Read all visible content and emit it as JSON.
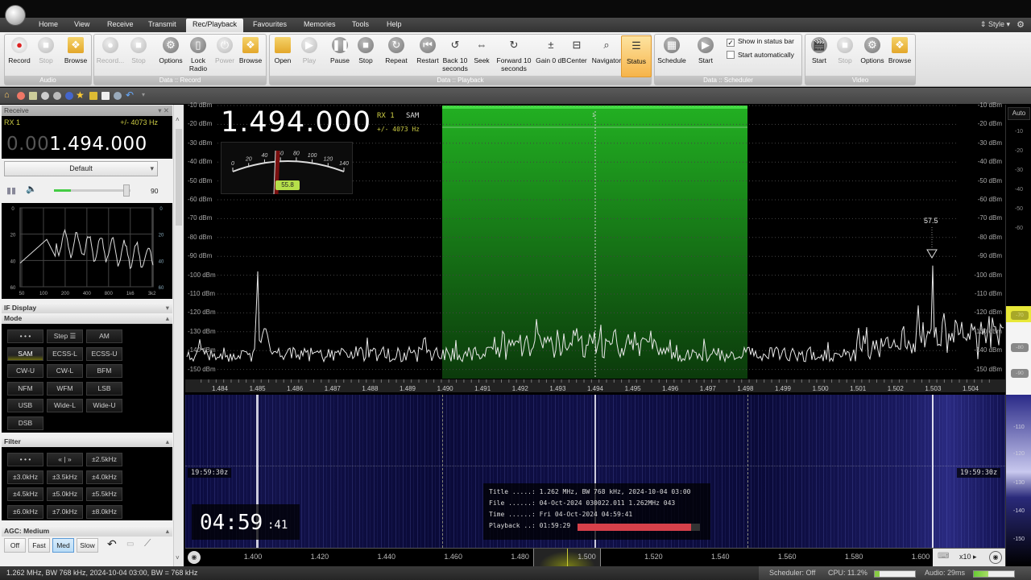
{
  "menu": {
    "tabs": [
      "Home",
      "View",
      "Receive",
      "Transmit",
      "Rec/Playback",
      "Favourites",
      "Memories",
      "Tools",
      "Help"
    ],
    "active": "Rec/Playback",
    "style_label": "Style"
  },
  "ribbon": {
    "groups": [
      "Audio",
      "Data :: Record",
      "Data :: Playback",
      "Data :: Scheduler",
      "Video"
    ],
    "buttons": [
      {
        "label": "Record",
        "icon": "record-icon",
        "disabled": false
      },
      {
        "label": "Stop",
        "icon": "stop-icon",
        "disabled": true
      },
      {
        "label": "Browse",
        "icon": "browse-folder-icon",
        "disabled": false
      },
      {
        "label": "Record...",
        "icon": "record-icon",
        "disabled": true
      },
      {
        "label": "Stop",
        "icon": "stop-icon",
        "disabled": true
      },
      {
        "label": "Options",
        "icon": "options-gear-icon",
        "disabled": false
      },
      {
        "label": "Lock Radio",
        "icon": "lock-icon",
        "disabled": false
      },
      {
        "label": "Power",
        "icon": "power-icon",
        "disabled": true
      },
      {
        "label": "Browse",
        "icon": "browse-folder-icon",
        "disabled": false
      },
      {
        "label": "Open",
        "icon": "open-folder-icon",
        "disabled": false
      },
      {
        "label": "Play",
        "icon": "play-icon",
        "disabled": true
      },
      {
        "label": "Pause",
        "icon": "pause-icon",
        "disabled": false
      },
      {
        "label": "Stop",
        "icon": "stop-icon",
        "disabled": false
      },
      {
        "label": "Repeat",
        "icon": "repeat-icon",
        "disabled": false
      },
      {
        "label": "Restart",
        "icon": "restart-icon",
        "disabled": false
      },
      {
        "label": "Back 10 seconds",
        "icon": "back-10-icon",
        "disabled": false
      },
      {
        "label": "Seek",
        "icon": "seek-icon",
        "disabled": false
      },
      {
        "label": "Forward 10 seconds",
        "icon": "forward-10-icon",
        "disabled": false
      },
      {
        "label": "Gain 0 dB",
        "icon": "gain-icon",
        "disabled": false
      },
      {
        "label": "Center",
        "icon": "center-icon",
        "disabled": false
      },
      {
        "label": "Navigator",
        "icon": "navigator-search-icon",
        "disabled": false
      },
      {
        "label": "Status",
        "icon": "status-list-icon",
        "disabled": false,
        "active": true
      },
      {
        "label": "Schedule",
        "icon": "schedule-calendar-icon",
        "disabled": false
      },
      {
        "label": "Start",
        "icon": "start-play-icon",
        "disabled": false
      },
      {
        "label": "Start",
        "icon": "video-clapper-icon",
        "disabled": false
      },
      {
        "label": "Stop",
        "icon": "stop-icon",
        "disabled": true
      },
      {
        "label": "Options",
        "icon": "options-gear-icon",
        "disabled": false
      },
      {
        "label": "Browse",
        "icon": "browse-folder-icon",
        "disabled": false
      }
    ],
    "show_in_status_bar": {
      "label": "Show in status bar",
      "checked": true
    },
    "start_automatically": {
      "label": "Start automatically",
      "checked": false
    }
  },
  "receive": {
    "panel_title": "Receive",
    "rx": "RX 1",
    "bandwidth": "+/- 4073 Hz",
    "freq_dim": "0.00",
    "freq_main": "1.494.000",
    "preset": "Default",
    "volume": 90,
    "audio_y_labels": [
      "0",
      "20",
      "40",
      "60"
    ],
    "audio_x_labels": [
      "50",
      "100",
      "200",
      "400",
      "800",
      "1k6",
      "3k2"
    ]
  },
  "if_display": {
    "title": "IF Display"
  },
  "mode": {
    "title": "Mode",
    "buttons": [
      "• • •",
      "Step ☰",
      "AM",
      "SAM",
      "ECSS-L",
      "ECSS-U",
      "CW-U",
      "CW-L",
      "BFM",
      "NFM",
      "WFM",
      "LSB",
      "USB",
      "Wide-L",
      "Wide-U",
      "DSB"
    ],
    "selected": "SAM"
  },
  "filter": {
    "title": "Filter",
    "buttons": [
      "• • •",
      "« | »",
      "±2.5kHz",
      "±3.0kHz",
      "±3.5kHz",
      "±4.0kHz",
      "±4.5kHz",
      "±5.0kHz",
      "±5.5kHz",
      "±6.0kHz",
      "±7.0kHz",
      "±8.0kHz"
    ]
  },
  "agc": {
    "title": "AGC: Medium",
    "buttons": [
      "Off",
      "Fast",
      "Med",
      "Slow"
    ],
    "selected": "Med"
  },
  "spectrum": {
    "frequency": "1.494.000",
    "rx": "RX 1",
    "mode": "SAM",
    "bandwidth": "+/- 4073 Hz",
    "smeter_value": "55.8",
    "smeter_labels": [
      "0",
      "20",
      "40",
      "60",
      "80",
      "100",
      "120",
      "140"
    ],
    "dbm_labels": [
      "-10 dBm",
      "-20 dBm",
      "-30 dBm",
      "-40 dBm",
      "-50 dBm",
      "-60 dBm",
      "-70 dBm",
      "-80 dBm",
      "-90 dBm",
      "-100 dBm",
      "-110 dBm",
      "-120 dBm",
      "-130 dBm",
      "-140 dBm",
      "-150 dBm"
    ],
    "freq_labels": [
      "1.484",
      "1.485",
      "1.486",
      "1.487",
      "1.488",
      "1.489",
      "1.490",
      "1.491",
      "1.492",
      "1.493",
      "1.494",
      "1.495",
      "1.496",
      "1.497",
      "1.498",
      "1.499",
      "1.500",
      "1.501",
      "1.502",
      "1.503",
      "1.504"
    ],
    "vfo_marker": "1",
    "peak_label": "57.5",
    "passband_color": "#1fa01f"
  },
  "waterfall": {
    "time_left": "19:59:30z",
    "time_right": "19:59:30z",
    "clock_hm": "04:59",
    "clock_s": ":41",
    "info": [
      {
        "k": "Title .....:",
        "v": "1.262 MHz, BW 768 kHz, 2024-10-04 03:00"
      },
      {
        "k": "File ......:",
        "v": "04-Oct-2024 030022.011 1.262MHz 043"
      },
      {
        "k": "Time ......:",
        "v": "Fri 04-Oct-2024 04:59:41"
      },
      {
        "k": "Playback ..:",
        "v": "01:59:29"
      }
    ],
    "playback_progress": 0.93,
    "progress_color": "#d6404a"
  },
  "overview": {
    "labels": [
      "1.400",
      "1.420",
      "1.440",
      "1.460",
      "1.480",
      "1.500",
      "1.520",
      "1.540",
      "1.560",
      "1.580",
      "1.600"
    ],
    "zoom": "x10"
  },
  "right_scale": {
    "auto": "Auto",
    "labels": [
      "-10",
      "-20",
      "-30",
      "-40",
      "-50",
      "-60",
      "-70",
      "-80",
      "-90",
      "-110",
      "-120",
      "-130",
      "-140",
      "-150"
    ]
  },
  "status": {
    "text": "1.262 MHz, BW 768 kHz, 2024-10-04 03:00, BW = 768 kHz",
    "scheduler": "Scheduler: Off",
    "cpu": "CPU: 11.2%",
    "cpu_value": 11.2,
    "audio": "Audio: 29ms",
    "audio_level": 0.35
  }
}
